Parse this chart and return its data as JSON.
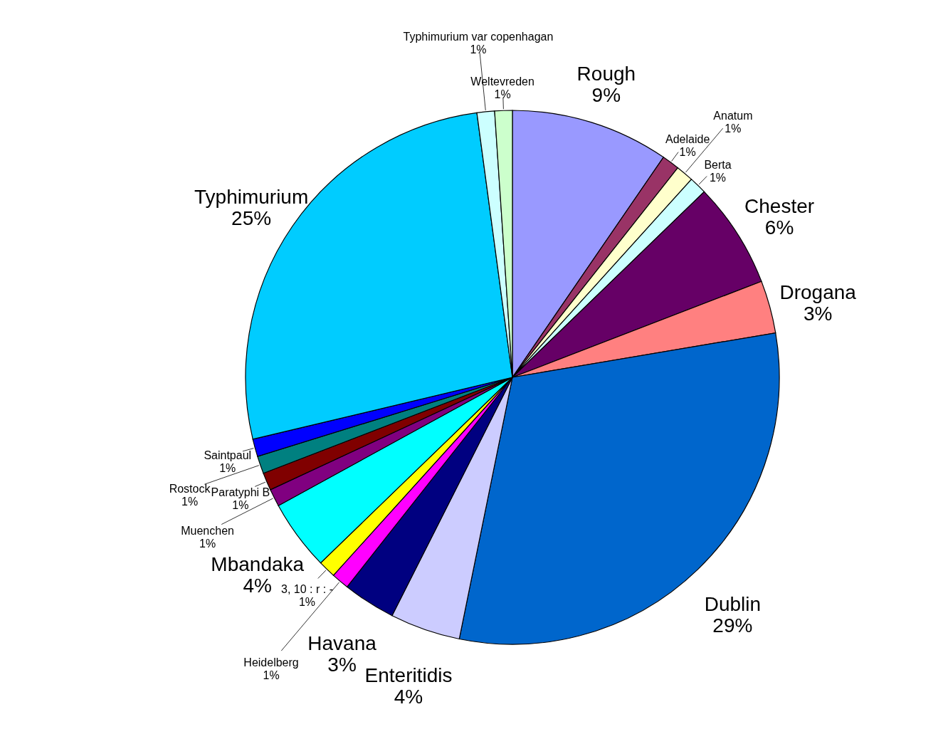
{
  "chart_data": {
    "type": "pie",
    "categories": [
      "Rough",
      "Adelaide",
      "Anatum",
      "Berta",
      "Chester",
      "Drogana",
      "Dublin",
      "Enteritidis",
      "Havana",
      "Heidelberg",
      "3, 10 : r : -",
      "Mbandaka",
      "Muenchen",
      "Paratyphi B",
      "Rostock",
      "Saintpaul",
      "Typhimurium",
      "Typhimurium var copenhagan",
      "Weltevreden"
    ],
    "values": [
      9,
      1,
      1,
      1,
      6,
      3,
      29,
      4,
      3,
      1,
      1,
      4,
      1,
      1,
      1,
      1,
      25,
      1,
      1
    ],
    "value_labels": [
      "9%",
      "1%",
      "1%",
      "1%",
      "6%",
      "3%",
      "29%",
      "4%",
      "3%",
      "1%",
      "1%",
      "4%",
      "1%",
      "1%",
      "1%",
      "1%",
      "25%",
      "1%",
      "1%"
    ],
    "colors": [
      "#9999ff",
      "#993366",
      "#ffffcc",
      "#ccffff",
      "#660066",
      "#ff8080",
      "#0066cc",
      "#ccccff",
      "#000080",
      "#ff00ff",
      "#ffff00",
      "#00ffff",
      "#800080",
      "#800000",
      "#008080",
      "#0000ff",
      "#00ccff",
      "#ccffff",
      "#ccffcc"
    ]
  }
}
